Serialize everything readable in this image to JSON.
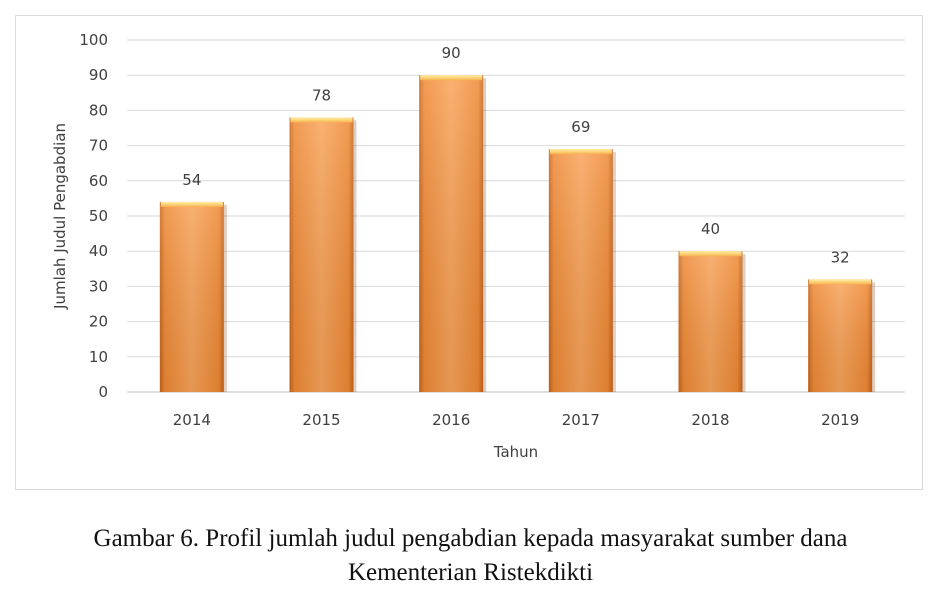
{
  "chart_data": {
    "type": "bar",
    "categories": [
      "2014",
      "2015",
      "2016",
      "2017",
      "2018",
      "2019"
    ],
    "values": [
      54,
      78,
      90,
      69,
      40,
      32
    ],
    "xlabel": "Tahun",
    "ylabel": "Jumlah Judul Pengabdian",
    "ylim": [
      0,
      100
    ],
    "yticks": [
      0,
      10,
      20,
      30,
      40,
      50,
      60,
      70,
      80,
      90,
      100
    ],
    "grid": true,
    "bar_color": "#f7963c",
    "data_labels": true
  },
  "caption": {
    "line1": "Gambar 6. Profil jumlah judul pengabdian kepada masyarakat sumber dana",
    "line2": "Kementerian Ristekdikti"
  }
}
